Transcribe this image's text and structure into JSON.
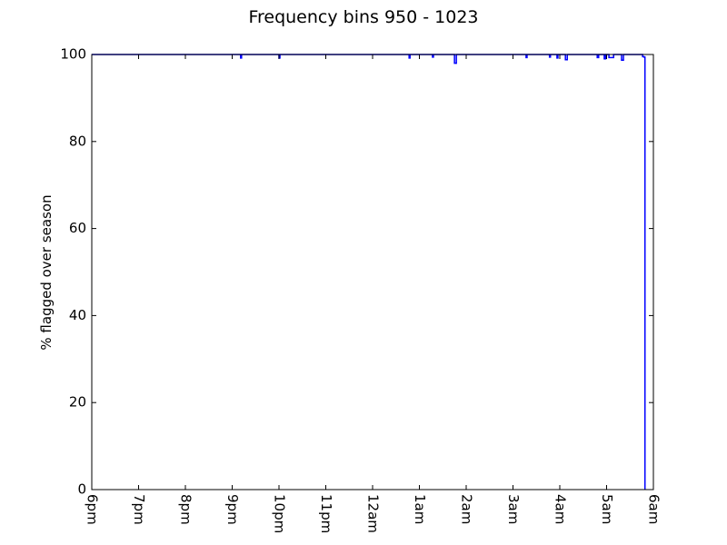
{
  "chart_data": {
    "type": "line",
    "title": "Frequency bins 950 - 1023",
    "xlabel": "",
    "ylabel": "% flagged over season",
    "x_ticks": [
      "6pm",
      "7pm",
      "8pm",
      "9pm",
      "10pm",
      "11pm",
      "12am",
      "1am",
      "2am",
      "3am",
      "4am",
      "5am",
      "6am"
    ],
    "y_ticks": [
      "0",
      "20",
      "40",
      "60",
      "80",
      "100"
    ],
    "ylim": [
      0,
      100
    ],
    "xlim": [
      0,
      12
    ],
    "grid": false,
    "series": [
      {
        "color": "#0000ff",
        "x": [
          0,
          3.18,
          3.18,
          3.2,
          3.2,
          4.0,
          4.0,
          4.02,
          4.02,
          6.78,
          6.78,
          6.8,
          6.8,
          7.28,
          7.28,
          7.3,
          7.3,
          7.75,
          7.75,
          7.79,
          7.79,
          9.28,
          9.28,
          9.3,
          9.3,
          9.78,
          9.78,
          9.8,
          9.8,
          9.94,
          9.94,
          9.96,
          9.96,
          10.12,
          10.12,
          10.16,
          10.16,
          10.8,
          10.8,
          10.83,
          10.83,
          10.95,
          10.95,
          10.98,
          10.98,
          11.05,
          11.05,
          11.15,
          11.15,
          11.32,
          11.32,
          11.36,
          11.36,
          11.77,
          11.77,
          11.8,
          11.8,
          11.82,
          11.82
        ],
        "y": [
          100,
          100,
          99.2,
          99.2,
          100,
          100,
          99.2,
          99.2,
          100,
          100,
          99.2,
          99.2,
          100,
          100,
          99.4,
          99.4,
          100,
          100,
          98.0,
          98.0,
          100,
          100,
          99.3,
          99.3,
          100,
          100,
          99.4,
          99.4,
          100,
          100,
          99.2,
          99.2,
          100,
          100,
          98.8,
          98.8,
          100,
          100,
          99.3,
          99.3,
          100,
          100,
          99.0,
          99.0,
          100,
          100,
          99.3,
          99.3,
          100,
          100,
          98.7,
          98.7,
          100,
          100,
          99.5,
          99.5,
          99.4,
          99.4,
          0
        ]
      }
    ]
  }
}
